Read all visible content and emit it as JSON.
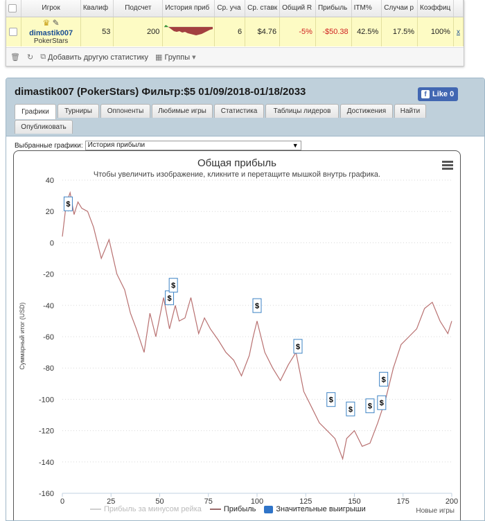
{
  "table": {
    "headers": [
      "Игрок",
      "Квалиф",
      "Подсчет",
      "История приб",
      "Ср. уча",
      "Ср. ставк",
      "Общий R",
      "Прибыль",
      "ITM%",
      "Случаи р",
      "Коэффиц"
    ],
    "row": {
      "player_name": "dimastik007",
      "player_site": "PokerStars",
      "qualified": "53",
      "count": "200",
      "avg_entrants": "6",
      "avg_stake": "$4.76",
      "total_roi": "-5%",
      "profit": "-$50.38",
      "itm": "42.5%",
      "cases": "17.5%",
      "coefficient": "100%",
      "link": "x"
    }
  },
  "toolbar": {
    "add_stat": "Добавить другую статистику",
    "groups": "Группы"
  },
  "panel": {
    "title": "dimastik007 (PokerStars) Фильтр:$5 01/09/2018-01/18/2033",
    "like_label": "Like 0",
    "tabs": [
      "Графики",
      "Турниры",
      "Оппоненты",
      "Любимые игры",
      "Статистика",
      "Таблицы лидеров",
      "Достижения",
      "Найти",
      "Опубликовать"
    ],
    "active_tab": "Графики",
    "select_label": "Выбранные графики:",
    "select_value": "История прибыли"
  },
  "chart_data": {
    "type": "line",
    "title": "Общая прибыль",
    "subtitle": "Чтобы увеличить изображение, кликните и перетащите мышкой внутрь графика.",
    "ylabel": "Суммарный итог (USD)",
    "xlabel": "",
    "xlim": [
      0,
      200
    ],
    "ylim": [
      -160,
      40
    ],
    "xticks": [
      0,
      25,
      50,
      75,
      100,
      125,
      150,
      175,
      200
    ],
    "yticks": [
      40,
      20,
      0,
      -20,
      -40,
      -60,
      -80,
      -100,
      -120,
      -140,
      -160
    ],
    "series": [
      {
        "name": "Прибыль",
        "color": "#b87070",
        "x": [
          0,
          2,
          4,
          6,
          8,
          10,
          13,
          16,
          20,
          24,
          28,
          32,
          35,
          38,
          42,
          45,
          48,
          52,
          55,
          58,
          60,
          63,
          66,
          70,
          73,
          76,
          80,
          84,
          88,
          92,
          96,
          98,
          100,
          104,
          108,
          112,
          116,
          120,
          124,
          128,
          132,
          136,
          140,
          144,
          146,
          150,
          154,
          158,
          162,
          166,
          170,
          174,
          178,
          182,
          186,
          190,
          194,
          198,
          200
        ],
        "y": [
          4,
          25,
          32,
          18,
          26,
          22,
          20,
          10,
          -10,
          2,
          -20,
          -30,
          -45,
          -55,
          -70,
          -45,
          -60,
          -35,
          -55,
          -40,
          -50,
          -48,
          -35,
          -58,
          -48,
          -55,
          -62,
          -70,
          -75,
          -85,
          -72,
          -60,
          -50,
          -70,
          -80,
          -88,
          -78,
          -70,
          -95,
          -105,
          -115,
          -120,
          -125,
          -138,
          -125,
          -120,
          -130,
          -128,
          -115,
          -100,
          -80,
          -65,
          -60,
          -55,
          -42,
          -38,
          -50,
          -58,
          -50
        ]
      }
    ],
    "legend": [
      {
        "name": "Прибыль за минусом рейка",
        "color": "#d0d0d0",
        "kind": "line"
      },
      {
        "name": "Прибыль",
        "color": "#9a6a6a",
        "kind": "line"
      },
      {
        "name": "Значительные выигрыши",
        "color": "#2f74c8",
        "kind": "box"
      }
    ],
    "big_wins": [
      {
        "x": 3,
        "y": 20
      },
      {
        "x": 55,
        "y": -40
      },
      {
        "x": 57,
        "y": -32
      },
      {
        "x": 100,
        "y": -45
      },
      {
        "x": 121,
        "y": -71
      },
      {
        "x": 138,
        "y": -105
      },
      {
        "x": 148,
        "y": -111
      },
      {
        "x": 158,
        "y": -109
      },
      {
        "x": 164,
        "y": -107
      },
      {
        "x": 165,
        "y": -92
      }
    ],
    "marker_label": "$"
  },
  "more_label": "Новые игры"
}
